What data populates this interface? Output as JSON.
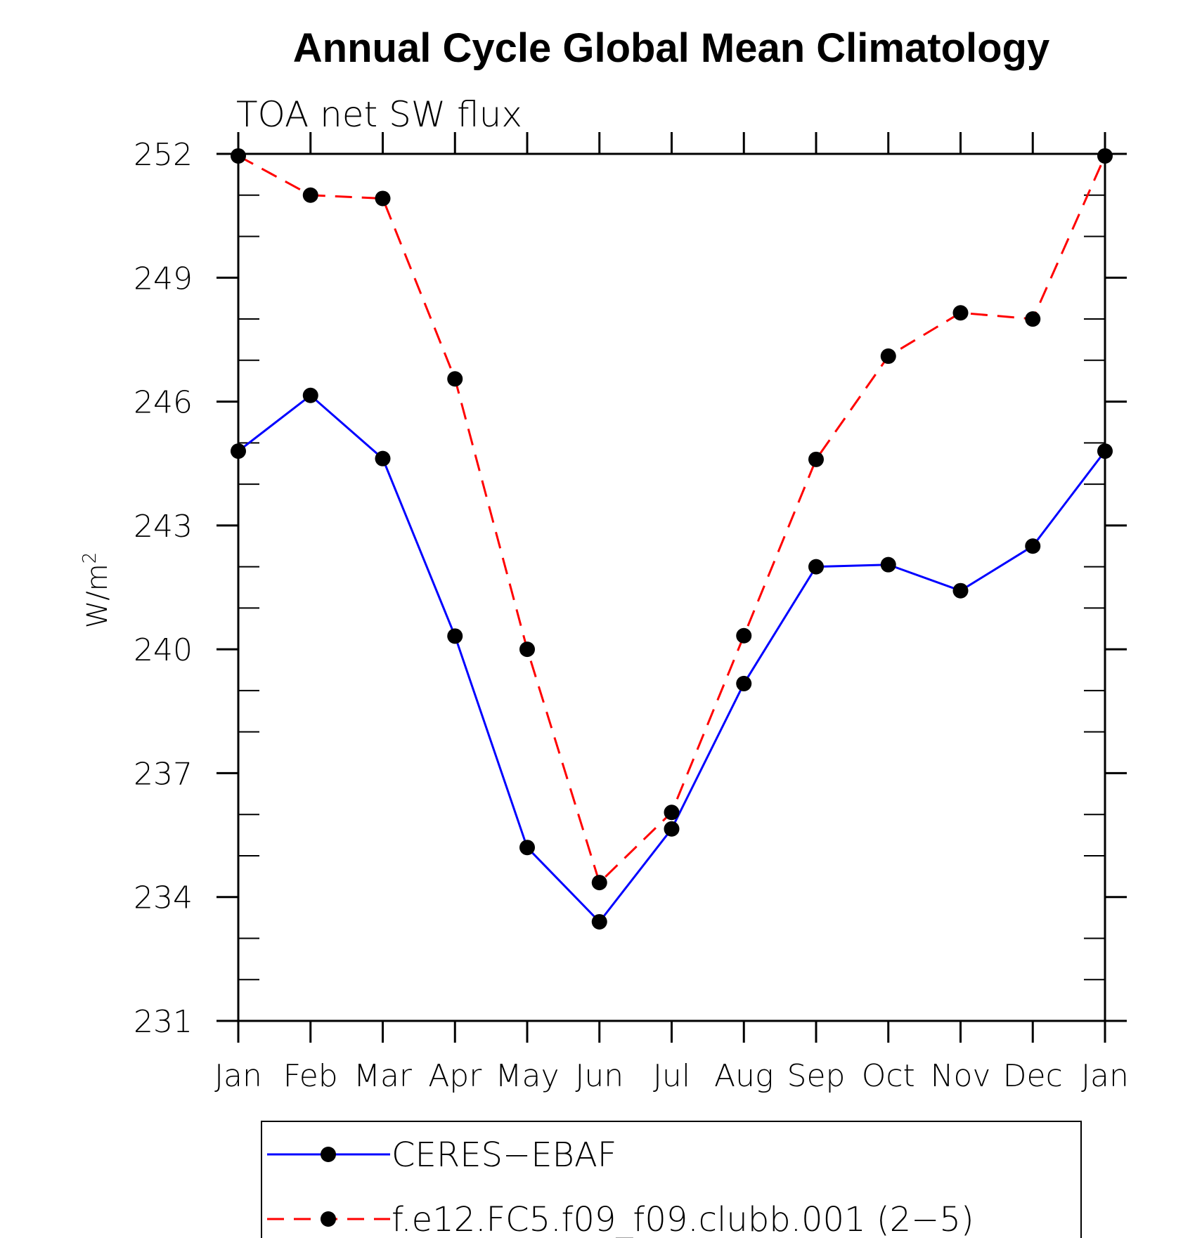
{
  "chart_data": {
    "type": "line",
    "title": "Annual Cycle Global Mean Climatology",
    "subtitle": "TOA net SW flux",
    "ylabel": "W/m",
    "ylabel_sup": "2",
    "categories": [
      "Jan",
      "Feb",
      "Mar",
      "Apr",
      "May",
      "Jun",
      "Jul",
      "Aug",
      "Sep",
      "Oct",
      "Nov",
      "Dec",
      "Jan"
    ],
    "ylim": [
      231,
      252
    ],
    "yticks": [
      231,
      234,
      237,
      240,
      243,
      246,
      249,
      252
    ],
    "grid": false,
    "legend_position": "bottom",
    "series": [
      {
        "name": "CERES−EBAF",
        "color": "#0000ff",
        "dash": "solid",
        "values": [
          244.8,
          246.15,
          244.62,
          240.32,
          235.2,
          233.4,
          235.65,
          239.17,
          242.0,
          242.05,
          241.42,
          242.5,
          244.8
        ]
      },
      {
        "name": "f.e12.FC5.f09_f09.clubb.001 (2−5)",
        "color": "#ff0000",
        "dash": "dashed",
        "values": [
          251.95,
          251.0,
          250.92,
          246.55,
          240.0,
          234.35,
          236.05,
          240.33,
          244.6,
          247.1,
          248.15,
          248.0,
          251.95
        ]
      }
    ]
  }
}
